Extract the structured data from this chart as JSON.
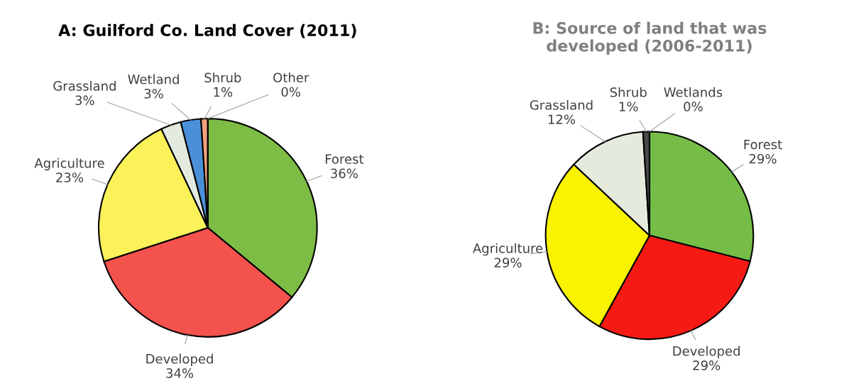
{
  "chart_data": [
    {
      "type": "pie",
      "title": "A: Guilford Co. Land Cover (2011)",
      "categories": [
        "Forest",
        "Developed",
        "Agriculture",
        "Grassland",
        "Wetland",
        "Shrub",
        "Other"
      ],
      "values": [
        36,
        34,
        23,
        3,
        3,
        1,
        0
      ],
      "value_labels": [
        "36%",
        "34%",
        "23%",
        "3%",
        "3%",
        "1%",
        "0%"
      ],
      "colors": [
        "#7dbd45",
        "#f4524d",
        "#fbf25a",
        "#e3eadf",
        "#4b8fd8",
        "#f2a07e",
        "#c0504d"
      ]
    },
    {
      "type": "pie",
      "title": "B: Source of land that was\ndeveloped (2006-2011)",
      "categories": [
        "Forest",
        "Developed",
        "Agriculture",
        "Grassland",
        "Shrub",
        "Wetlands"
      ],
      "values": [
        29,
        29,
        29,
        12,
        1,
        0
      ],
      "value_labels": [
        "29%",
        "29%",
        "29%",
        "12%",
        "1%",
        "0%"
      ],
      "colors": [
        "#76bd47",
        "#f51a14",
        "#f9f200",
        "#e4ebdc",
        "#4a4a4a",
        "#bfbfbf"
      ]
    }
  ]
}
